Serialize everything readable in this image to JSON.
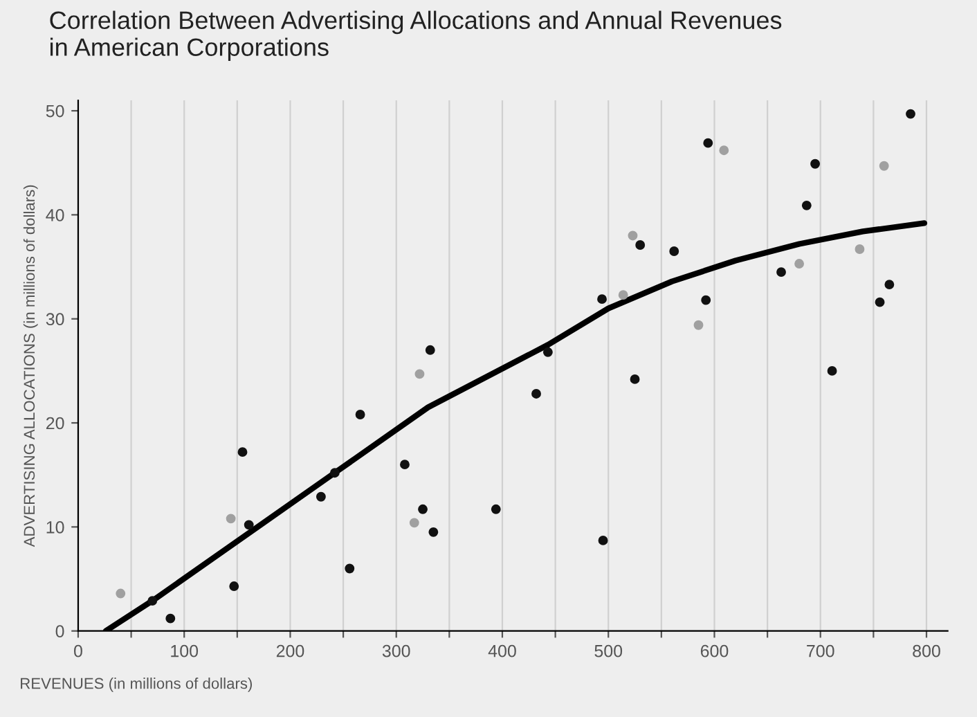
{
  "chart_data": {
    "type": "scatter",
    "title": "Correlation Between Advertising Allocations and Annual Revenues\nin American Corporations",
    "xlabel": "REVENUES (in millions of dollars)",
    "ylabel": "ADVERTISING ALLOCATIONS (in millions of dollars)",
    "xlim": [
      0,
      820
    ],
    "ylim": [
      0,
      51
    ],
    "xticks": [
      0,
      {
        "value": 50,
        "label": null
      },
      100,
      {
        "value": 150,
        "label": null
      },
      200,
      {
        "value": 250,
        "label": null
      },
      300,
      {
        "value": 350,
        "label": null
      },
      400,
      {
        "value": 450,
        "label": null
      },
      500,
      {
        "value": 550,
        "label": null
      },
      600,
      {
        "value": 650,
        "label": null
      },
      700,
      {
        "value": 750,
        "label": null
      },
      800
    ],
    "yticks": [
      0,
      10,
      20,
      30,
      40,
      50
    ],
    "grid": "x",
    "marker": "circle",
    "series": [
      {
        "color": "#111111",
        "x": [
          785,
          594,
          695,
          687,
          530,
          562,
          663,
          494,
          592,
          765,
          756,
          525,
          711,
          443,
          432,
          495,
          332,
          266,
          155,
          308,
          242,
          229,
          325,
          161,
          335,
          394,
          256,
          147,
          70,
          87
        ],
        "values": [
          49.7,
          46.9,
          44.9,
          40.9,
          37.1,
          36.5,
          34.5,
          31.9,
          31.8,
          33.3,
          31.6,
          24.2,
          25.0,
          26.8,
          22.8,
          8.7,
          27.0,
          20.8,
          17.2,
          16.0,
          15.2,
          12.9,
          11.7,
          10.2,
          9.5,
          11.7,
          6.0,
          4.3,
          2.9,
          1.2
        ]
      },
      {
        "color": "#a0a0a0",
        "x": [
          609,
          760,
          523,
          737,
          680,
          514,
          585,
          322,
          144,
          317,
          40
        ],
        "values": [
          46.2,
          44.7,
          38.0,
          36.7,
          35.3,
          32.3,
          29.4,
          24.7,
          10.8,
          10.4,
          3.6
        ]
      },
      {
        "type": "line",
        "color": "#000000",
        "marker": "none",
        "x": [
          26,
          70,
          242,
          330,
          443,
          500,
          560,
          620,
          680,
          740,
          798
        ],
        "values": [
          0,
          2.9,
          15.2,
          21.5,
          27.5,
          31.0,
          33.6,
          35.6,
          37.2,
          38.4,
          39.2
        ]
      }
    ]
  }
}
